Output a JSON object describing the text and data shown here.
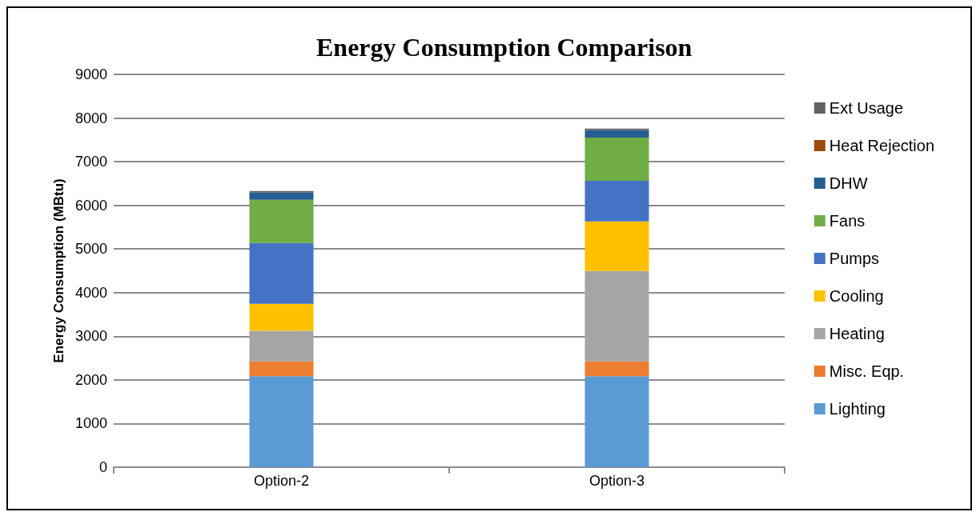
{
  "chart_data": {
    "type": "bar",
    "title": "Energy Consumption Comparison",
    "ylabel": "Energy Consumption (MBtu)",
    "categories": [
      "Option-2",
      "Option-3"
    ],
    "stacked": true,
    "ylim": [
      0,
      9000
    ],
    "yticks": [
      0,
      1000,
      2000,
      3000,
      4000,
      5000,
      6000,
      7000,
      8000,
      9000
    ],
    "grid": "y",
    "legend": "right",
    "series": [
      {
        "name": "Lighting",
        "color": "#5b9bd5",
        "values": [
          2085,
          2085
        ]
      },
      {
        "name": "Misc. Eqp.",
        "color": "#ed7d31",
        "values": [
          340,
          340
        ]
      },
      {
        "name": "Heating",
        "color": "#a5a5a5",
        "values": [
          700,
          2070
        ]
      },
      {
        "name": "Cooling",
        "color": "#ffc000",
        "values": [
          620,
          1135
        ]
      },
      {
        "name": "Pumps",
        "color": "#4472c4",
        "values": [
          1390,
          930
        ]
      },
      {
        "name": "Fans",
        "color": "#70ad47",
        "values": [
          990,
          990
        ]
      },
      {
        "name": "DHW",
        "color": "#255e91",
        "values": [
          165,
          175
        ]
      },
      {
        "name": "Heat Rejection",
        "color": "#9e480e",
        "values": [
          0,
          0
        ]
      },
      {
        "name": "Ext Usage",
        "color": "#636363",
        "values": [
          40,
          35
        ]
      }
    ]
  }
}
